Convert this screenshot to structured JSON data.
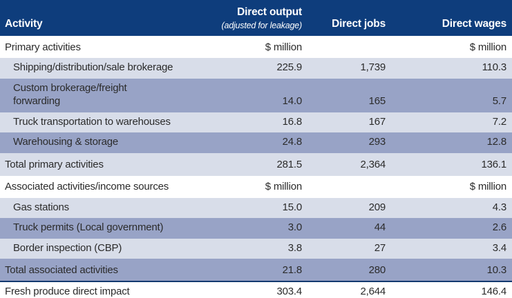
{
  "colors": {
    "header_bg": "#0e3d7c",
    "header_text": "#ffffff",
    "row_light": "#d8dde9",
    "row_medium": "#98a3c6",
    "row_white": "#ffffff",
    "grand_row_top_border": "#12396f",
    "table_bottom_border": "#a9b3d0",
    "body_text": "#2b2b2b"
  },
  "header": {
    "activity": "Activity",
    "output": "Direct output",
    "output_note": "(adjusted for leakage)",
    "jobs": "Direct jobs",
    "wages": "Direct wages"
  },
  "rows": [
    {
      "label": "Primary activities",
      "output": "$ million",
      "jobs": "",
      "wages": "$ million"
    },
    {
      "label": "Shipping/distribution/sale brokerage",
      "output": "225.9",
      "jobs": "1,739",
      "wages": "110.3"
    },
    {
      "label": "Custom brokerage/freight\nforwarding",
      "output": "14.0",
      "jobs": "165",
      "wages": "5.7"
    },
    {
      "label": "Truck transportation to warehouses",
      "output": "16.8",
      "jobs": "167",
      "wages": "7.2"
    },
    {
      "label": "Warehousing & storage",
      "output": "24.8",
      "jobs": "293",
      "wages": "12.8"
    },
    {
      "label": "Total primary activities",
      "output": "281.5",
      "jobs": "2,364",
      "wages": "136.1"
    },
    {
      "label": "Associated activities/income sources",
      "output": "$ million",
      "jobs": "",
      "wages": "$ million"
    },
    {
      "label": "Gas stations",
      "output": "15.0",
      "jobs": "209",
      "wages": "4.3"
    },
    {
      "label": "Truck permits (Local government)",
      "output": "3.0",
      "jobs": "44",
      "wages": "2.6"
    },
    {
      "label": "Border inspection (CBP)",
      "output": "3.8",
      "jobs": "27",
      "wages": "3.4"
    },
    {
      "label": "Total associated activities",
      "output": "21.8",
      "jobs": "280",
      "wages": "10.3"
    },
    {
      "label": "Fresh produce direct impact",
      "output": "303.4",
      "jobs": "2,644",
      "wages": "146.4"
    }
  ]
}
